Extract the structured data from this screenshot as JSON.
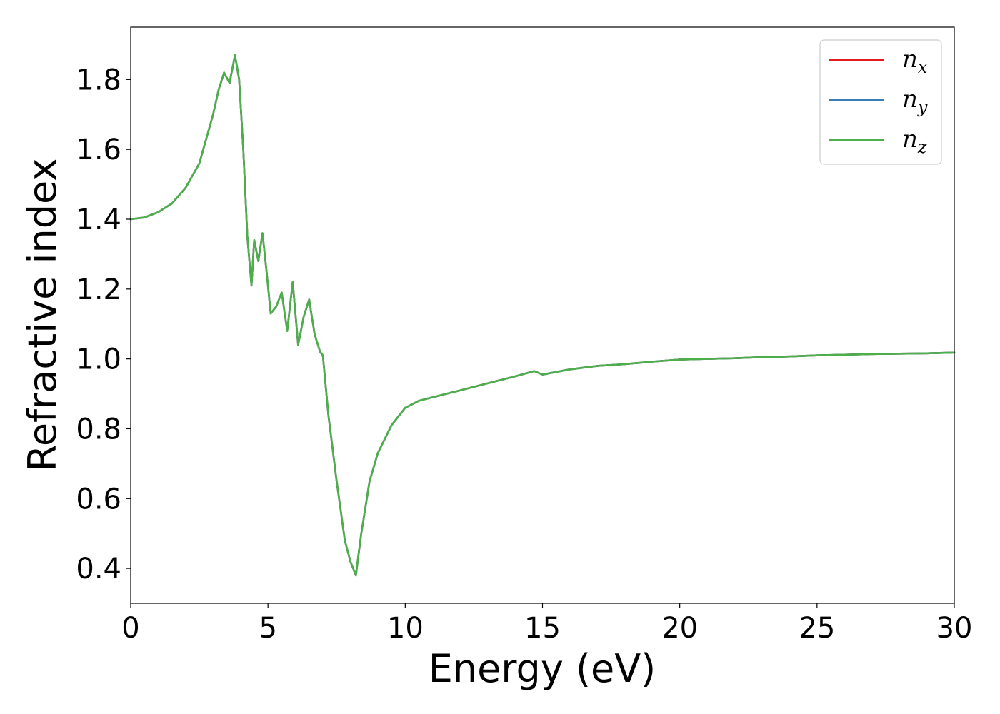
{
  "chart_data": {
    "type": "line",
    "title": "",
    "xlabel": "Energy (eV)",
    "ylabel": "Refractive index",
    "xlim": [
      0,
      30
    ],
    "ylim": [
      0.3,
      1.95
    ],
    "xticks": [
      0,
      5,
      10,
      15,
      20,
      25,
      30
    ],
    "yticks": [
      0.4,
      0.6,
      0.8,
      1.0,
      1.2,
      1.4,
      1.6,
      1.8
    ],
    "xtick_labels": [
      "0",
      "5",
      "10",
      "15",
      "20",
      "25",
      "30"
    ],
    "ytick_labels": [
      "0.4",
      "0.6",
      "0.8",
      "1.0",
      "1.2",
      "1.4",
      "1.6",
      "1.8"
    ],
    "grid": false,
    "legend_position": "top-right",
    "x": [
      0.0,
      0.5,
      1.0,
      1.5,
      2.0,
      2.5,
      3.0,
      3.2,
      3.4,
      3.6,
      3.8,
      3.95,
      4.1,
      4.25,
      4.4,
      4.5,
      4.65,
      4.8,
      4.95,
      5.1,
      5.3,
      5.5,
      5.7,
      5.9,
      6.1,
      6.3,
      6.5,
      6.7,
      6.9,
      7.0,
      7.2,
      7.5,
      7.8,
      8.0,
      8.2,
      8.4,
      8.7,
      9.0,
      9.5,
      10.0,
      10.5,
      11.0,
      11.5,
      12.0,
      13.0,
      14.0,
      14.7,
      15.0,
      16.0,
      17.0,
      18.0,
      19.0,
      20.0,
      21.0,
      22.0,
      23.0,
      24.0,
      25.0,
      26.0,
      27.0,
      28.0,
      29.0,
      30.0
    ],
    "series": [
      {
        "name": "n_x",
        "color": "#e41a1c",
        "y": [
          1.4,
          1.405,
          1.42,
          1.445,
          1.49,
          1.56,
          1.7,
          1.77,
          1.82,
          1.79,
          1.87,
          1.8,
          1.6,
          1.35,
          1.21,
          1.34,
          1.28,
          1.36,
          1.25,
          1.13,
          1.15,
          1.19,
          1.08,
          1.22,
          1.04,
          1.12,
          1.17,
          1.07,
          1.02,
          1.01,
          0.84,
          0.65,
          0.48,
          0.42,
          0.38,
          0.5,
          0.65,
          0.73,
          0.81,
          0.86,
          0.88,
          0.89,
          0.9,
          0.91,
          0.93,
          0.95,
          0.965,
          0.955,
          0.97,
          0.98,
          0.985,
          0.992,
          0.998,
          1.0,
          1.002,
          1.005,
          1.007,
          1.01,
          1.012,
          1.014,
          1.015,
          1.016,
          1.018
        ]
      },
      {
        "name": "n_y",
        "color": "#377eb8",
        "y": [
          1.4,
          1.405,
          1.42,
          1.445,
          1.49,
          1.56,
          1.7,
          1.77,
          1.82,
          1.79,
          1.87,
          1.8,
          1.6,
          1.35,
          1.21,
          1.34,
          1.28,
          1.36,
          1.25,
          1.13,
          1.15,
          1.19,
          1.08,
          1.22,
          1.04,
          1.12,
          1.17,
          1.07,
          1.02,
          1.01,
          0.84,
          0.65,
          0.48,
          0.42,
          0.38,
          0.5,
          0.65,
          0.73,
          0.81,
          0.86,
          0.88,
          0.89,
          0.9,
          0.91,
          0.93,
          0.95,
          0.965,
          0.955,
          0.97,
          0.98,
          0.985,
          0.992,
          0.998,
          1.0,
          1.002,
          1.005,
          1.007,
          1.01,
          1.012,
          1.014,
          1.015,
          1.016,
          1.018
        ]
      },
      {
        "name": "n_z",
        "color": "#4daf4a",
        "y": [
          1.4,
          1.405,
          1.42,
          1.445,
          1.49,
          1.56,
          1.7,
          1.77,
          1.82,
          1.79,
          1.87,
          1.8,
          1.6,
          1.35,
          1.21,
          1.34,
          1.28,
          1.36,
          1.25,
          1.13,
          1.15,
          1.19,
          1.08,
          1.22,
          1.04,
          1.12,
          1.17,
          1.07,
          1.02,
          1.01,
          0.84,
          0.65,
          0.48,
          0.42,
          0.38,
          0.5,
          0.65,
          0.73,
          0.81,
          0.86,
          0.88,
          0.89,
          0.9,
          0.91,
          0.93,
          0.95,
          0.965,
          0.955,
          0.97,
          0.98,
          0.985,
          0.992,
          0.998,
          1.0,
          1.002,
          1.005,
          1.007,
          1.01,
          1.012,
          1.014,
          1.015,
          1.016,
          1.018
        ]
      }
    ],
    "legend": [
      {
        "base": "n",
        "sub": "x",
        "color": "#e41a1c"
      },
      {
        "base": "n",
        "sub": "y",
        "color": "#377eb8"
      },
      {
        "base": "n",
        "sub": "z",
        "color": "#4daf4a"
      }
    ]
  }
}
